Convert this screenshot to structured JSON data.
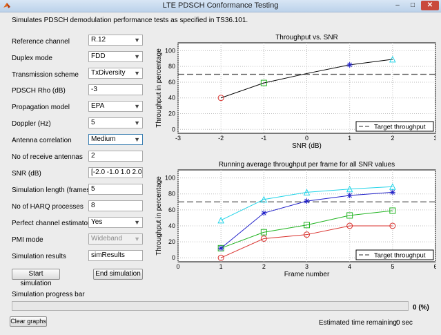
{
  "window": {
    "title": "LTE PDSCH Conformance Testing",
    "minimize": "–",
    "maximize": "□",
    "close": "✕"
  },
  "description": "Simulates PDSCH demodulation performance tests as specified in TS36.101.",
  "form": {
    "reference_channel": {
      "label": "Reference channel",
      "value": "R.12"
    },
    "duplex_mode": {
      "label": "Duplex mode",
      "value": "FDD"
    },
    "transmission_scheme": {
      "label": "Transmission scheme",
      "value": "TxDiversity"
    },
    "pdsch_rho": {
      "label": "PDSCH Rho (dB)",
      "value": "-3"
    },
    "propagation_model": {
      "label": "Propagation model",
      "value": "EPA"
    },
    "doppler": {
      "label": "Doppler (Hz)",
      "value": "5"
    },
    "antenna_correlation": {
      "label": "Antenna correlation",
      "value": "Medium"
    },
    "receive_antennas": {
      "label": "No of receive antennas",
      "value": "2"
    },
    "snr": {
      "label": "SNR (dB)",
      "value": "[-2.0 -1.0 1.0 2.0]"
    },
    "sim_length": {
      "label": "Simulation length (frames)",
      "value": "5"
    },
    "harq_processes": {
      "label": "No of HARQ processes",
      "value": "8"
    },
    "perfect_estimator": {
      "label": "Perfect channel estimator",
      "value": "Yes"
    },
    "pmi_mode": {
      "label": "PMI mode",
      "value": "Wideband"
    },
    "sim_results": {
      "label": "Simulation results",
      "value": "simResults"
    }
  },
  "buttons": {
    "start": "Start simulation",
    "end": "End simulation",
    "clear": "Clear graphs"
  },
  "progress": {
    "label": "Simulation progress bar",
    "fraction": 0,
    "value_text": "0 (%)"
  },
  "time_remaining": {
    "label": "Estimated time remaining:",
    "value": "0 sec"
  },
  "icons": {
    "dropdown": "chevron-down-icon",
    "app": "matlab-icon"
  },
  "colors": {
    "target_line": "#555555",
    "red": "#d9302c",
    "green": "#1fb31f",
    "blue": "#1f1fc8",
    "cyan": "#22d4e8",
    "black": "#000000"
  },
  "chart_data": [
    {
      "type": "line",
      "title": "Throughput vs. SNR",
      "xlabel": "SNR (dB)",
      "ylabel": "Throughput in percentage",
      "xlim": [
        -3,
        3
      ],
      "ylim": [
        -5,
        110
      ],
      "xticks": [
        -3,
        -2,
        -1,
        0,
        1,
        2,
        3
      ],
      "yticks": [
        0,
        20,
        40,
        60,
        80,
        100
      ],
      "grid": true,
      "legend": {
        "position": "bottom-right",
        "entries": [
          "Target throughput"
        ]
      },
      "target_throughput": 70,
      "series": [
        {
          "values_x": [
            -2,
            -1,
            0,
            1,
            2
          ],
          "values_y": [
            40,
            59,
            71,
            82,
            89
          ],
          "line_color": "#000000"
        }
      ],
      "markers": [
        {
          "x": -2,
          "y": 40,
          "shape": "circle",
          "color": "#d9302c"
        },
        {
          "x": -1,
          "y": 59,
          "shape": "square",
          "color": "#1fb31f"
        },
        {
          "x": 1,
          "y": 82,
          "shape": "star",
          "color": "#1f1fc8"
        },
        {
          "x": 2,
          "y": 89,
          "shape": "triangle",
          "color": "#22d4e8"
        }
      ]
    },
    {
      "type": "line",
      "title": "Running average throughput per frame for all SNR values",
      "xlabel": "Frame number",
      "ylabel": "Throughput in percentage",
      "xlim": [
        0,
        6
      ],
      "ylim": [
        -5,
        110
      ],
      "xticks": [
        0,
        1,
        2,
        3,
        4,
        5,
        6
      ],
      "yticks": [
        0,
        20,
        40,
        60,
        80,
        100
      ],
      "grid": true,
      "legend": {
        "position": "bottom-right",
        "entries": [
          "Target throughput"
        ]
      },
      "target_throughput": 70,
      "x": [
        1,
        2,
        3,
        4,
        5
      ],
      "series": [
        {
          "values": [
            0,
            24,
            29,
            40,
            40
          ],
          "color": "#d9302c",
          "marker": "circle"
        },
        {
          "values": [
            12,
            32,
            41,
            53,
            59
          ],
          "color": "#1fb31f",
          "marker": "square"
        },
        {
          "values": [
            12,
            56,
            71,
            78,
            82
          ],
          "color": "#1f1fc8",
          "marker": "star"
        },
        {
          "values": [
            47,
            73,
            82,
            86,
            89
          ],
          "color": "#22d4e8",
          "marker": "triangle"
        }
      ]
    }
  ]
}
